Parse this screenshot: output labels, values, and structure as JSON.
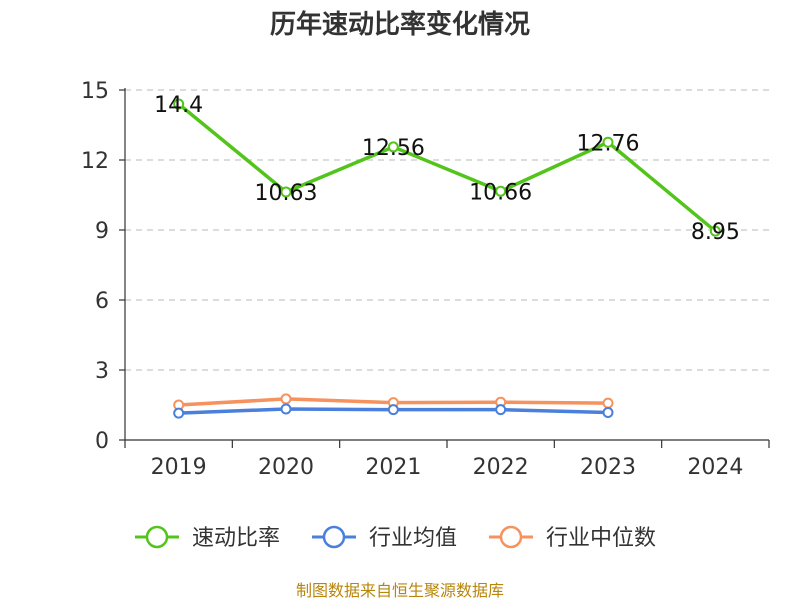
{
  "chart_data": {
    "type": "line",
    "title": "历年速动比率变化情况",
    "categories": [
      "2019",
      "2020",
      "2021",
      "2022",
      "2023",
      "2024"
    ],
    "ylim": [
      0,
      15
    ],
    "yticks": [
      "0",
      "3",
      "6",
      "9",
      "12",
      "15"
    ],
    "yticks_values": [
      0,
      3,
      6,
      9,
      12,
      15
    ],
    "grid": true,
    "legend_position": "bottom",
    "series": [
      {
        "name": "速动比率",
        "color": "#52c41a",
        "values": [
          14.4,
          10.63,
          12.56,
          10.66,
          12.76,
          8.95
        ],
        "labels": [
          "14.4",
          "10.63",
          "12.56",
          "10.66",
          "12.76",
          "8.95"
        ],
        "show_labels": true
      },
      {
        "name": "行业均值",
        "color": "#4a7fdc",
        "values": [
          1.15,
          1.33,
          1.3,
          1.3,
          1.18,
          null
        ],
        "show_labels": false
      },
      {
        "name": "行业中位数",
        "color": "#f5925e",
        "values": [
          1.5,
          1.76,
          1.6,
          1.62,
          1.58,
          null
        ],
        "show_labels": false
      }
    ]
  },
  "source_text": "制图数据来自恒生聚源数据库"
}
